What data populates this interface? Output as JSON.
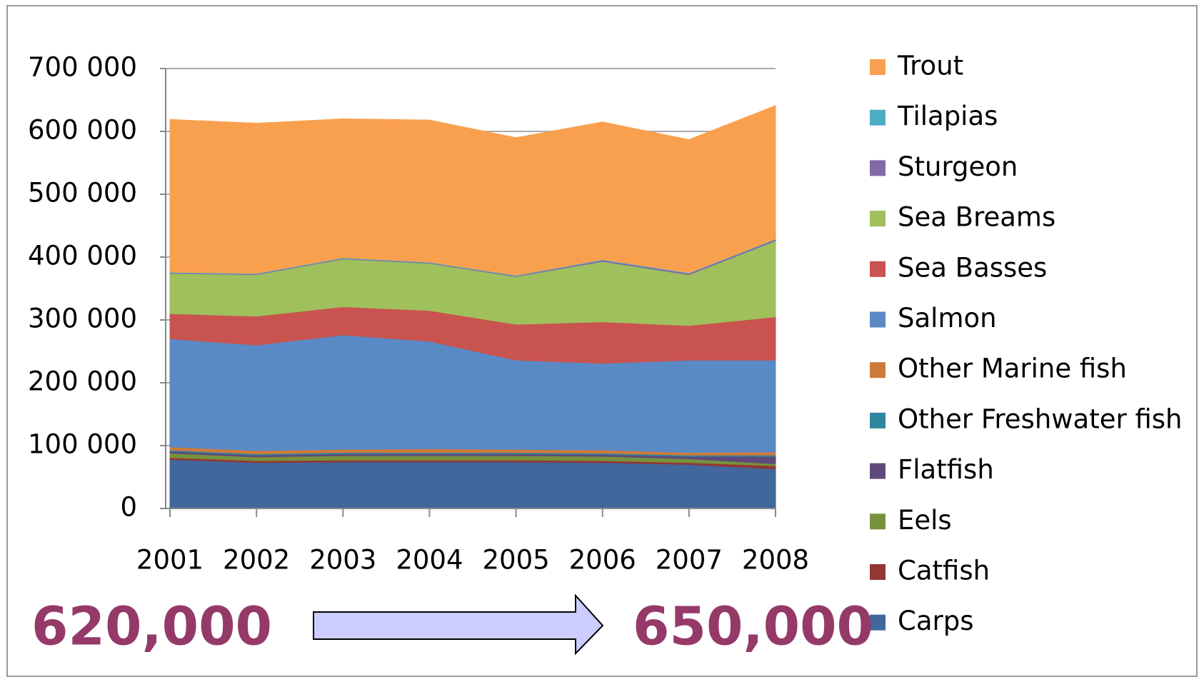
{
  "chart_data": {
    "type": "stacked_area",
    "categories": [
      "2001",
      "2002",
      "2003",
      "2004",
      "2005",
      "2006",
      "2007",
      "2008"
    ],
    "series": [
      {
        "name": "Carps",
        "color": "#41679c",
        "values": [
          78000,
          73000,
          74000,
          74000,
          74000,
          73000,
          70000,
          63000
        ]
      },
      {
        "name": "Catfish",
        "color": "#943634",
        "values": [
          3000,
          3000,
          3000,
          3000,
          3000,
          3000,
          3000,
          5000
        ]
      },
      {
        "name": "Eels",
        "color": "#76923c",
        "values": [
          7000,
          6000,
          7000,
          7000,
          7000,
          7000,
          6000,
          3000
        ]
      },
      {
        "name": "Flatfish",
        "color": "#5f497a",
        "values": [
          3000,
          3000,
          3000,
          3000,
          3000,
          3000,
          4000,
          12000
        ]
      },
      {
        "name": "Other Freshwater fish",
        "color": "#31859c",
        "values": [
          2000,
          2000,
          2000,
          2000,
          2000,
          2000,
          2000,
          2000
        ]
      },
      {
        "name": "Other Marine fish",
        "color": "#d07a3a",
        "values": [
          5000,
          5000,
          5000,
          6000,
          5000,
          5000,
          4000,
          5000
        ]
      },
      {
        "name": "Salmon",
        "color": "#5a8ac6",
        "values": [
          172000,
          168000,
          182000,
          171000,
          142000,
          138000,
          147000,
          146000
        ]
      },
      {
        "name": "Sea Basses",
        "color": "#c9534f",
        "values": [
          40000,
          46000,
          45000,
          49000,
          57000,
          66000,
          55000,
          69000
        ]
      },
      {
        "name": "Sea Breams",
        "color": "#9fc05c",
        "values": [
          64000,
          66000,
          76000,
          75000,
          76000,
          96000,
          81000,
          121000
        ]
      },
      {
        "name": "Sturgeon",
        "color": "#8468a8",
        "values": [
          1000,
          1000,
          1000,
          1000,
          1000,
          2000,
          2000,
          2000
        ]
      },
      {
        "name": "Tilapias",
        "color": "#4bacc6",
        "values": [
          1000,
          1000,
          1000,
          1000,
          1000,
          1000,
          1000,
          1000
        ]
      },
      {
        "name": "Trout",
        "color": "#f9a04f",
        "values": [
          243000,
          239000,
          221000,
          226000,
          219000,
          219000,
          212000,
          212000
        ]
      }
    ],
    "ylim": [
      0,
      700000
    ],
    "yticks": [
      0,
      {
        "value": 100000,
        "label": "100 000"
      },
      {
        "value": 200000,
        "label": "200 000"
      },
      {
        "value": 300000,
        "label": "300 000"
      },
      {
        "value": 400000,
        "label": "400 000"
      },
      {
        "value": 500000,
        "label": "500 000"
      },
      {
        "value": 600000,
        "label": "600 000"
      },
      {
        "value": 700000,
        "label": "700 000"
      }
    ],
    "grid": true,
    "legend": "right",
    "annotations": [
      "620,000",
      "650,000"
    ]
  }
}
